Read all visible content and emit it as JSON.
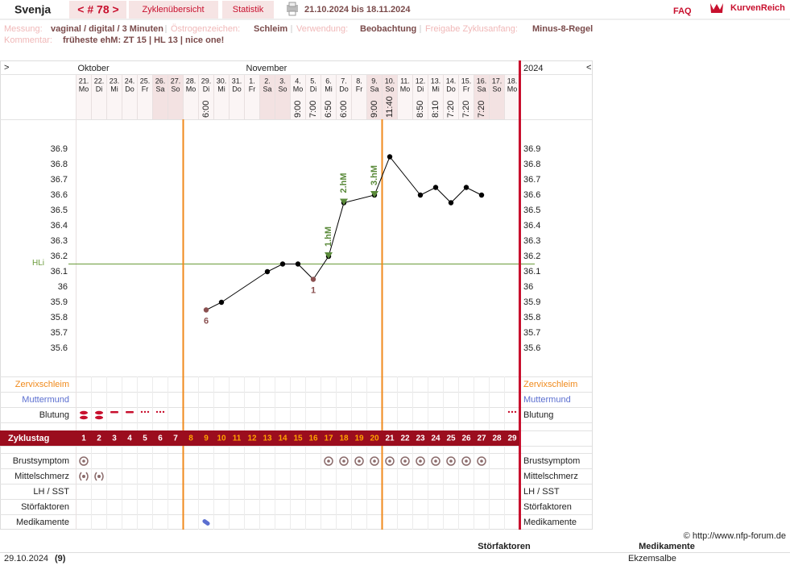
{
  "header": {
    "name": "Svenja",
    "cycle_nav": "< # 78 >",
    "tabs": [
      "Zyklenübersicht",
      "Statistik"
    ],
    "date_range": "21.10.2024 bis 18.11.2024",
    "faq": "FAQ",
    "logo": "KurvenReich"
  },
  "info": {
    "fields": [
      {
        "label": "Messung:",
        "value": "vaginal / digital / 3 Minuten"
      },
      {
        "label": "Östrogenzeichen:",
        "value": "Schleim"
      },
      {
        "label": "Verwendung:",
        "value": "Beobachtung"
      },
      {
        "label": "Freigabe Zyklusanfang:",
        "value": "Minus-8-Regel"
      }
    ],
    "comment_label": "Kommentar:",
    "comment": "früheste ehM: ZT 15 | HL 13 | nice one!"
  },
  "chart_data": {
    "type": "line",
    "nav_prev": ">",
    "nav_next": "<",
    "year": "2024",
    "month_labels": [
      "Oktober",
      null,
      null,
      null,
      null,
      null,
      null,
      null,
      null,
      null,
      null,
      "November",
      null,
      null,
      null,
      null,
      null,
      null,
      null,
      null,
      null,
      null,
      null,
      null,
      null,
      null,
      null,
      null,
      null
    ],
    "dates": [
      "21.",
      "22.",
      "23.",
      "24.",
      "25.",
      "26.",
      "27.",
      "28.",
      "29.",
      "30.",
      "31.",
      "1.",
      "2.",
      "3.",
      "4.",
      "5.",
      "6.",
      "7.",
      "8.",
      "9.",
      "10.",
      "11.",
      "12.",
      "13.",
      "14.",
      "15.",
      "16.",
      "17.",
      "18."
    ],
    "weekdays": [
      "Mo",
      "Di",
      "Mi",
      "Do",
      "Fr",
      "Sa",
      "So",
      "Mo",
      "Di",
      "Mi",
      "Do",
      "Fr",
      "Sa",
      "So",
      "Mo",
      "Di",
      "Mi",
      "Do",
      "Fr",
      "Sa",
      "So",
      "Mo",
      "Di",
      "Mi",
      "Do",
      "Fr",
      "Sa",
      "So",
      "Mo"
    ],
    "times": [
      null,
      null,
      null,
      null,
      null,
      null,
      null,
      null,
      "6:00",
      null,
      null,
      null,
      null,
      null,
      "9:00",
      "7:00",
      "6:50",
      "6:00",
      null,
      "9:00",
      "11:40",
      null,
      "8:50",
      "8:10",
      "7:20",
      "7:20",
      "7:20",
      null,
      null
    ],
    "cycle_days": [
      1,
      2,
      3,
      4,
      5,
      6,
      7,
      8,
      9,
      10,
      11,
      12,
      13,
      14,
      15,
      16,
      17,
      18,
      19,
      20,
      21,
      22,
      23,
      24,
      25,
      26,
      27,
      28,
      29
    ],
    "cycle_day_label": "Zyklustag",
    "x": [
      9,
      10,
      13,
      14,
      15,
      16,
      17,
      18,
      20,
      21,
      23,
      24,
      25,
      26,
      27
    ],
    "values": [
      35.85,
      35.9,
      36.1,
      36.15,
      36.15,
      36.05,
      36.2,
      36.55,
      36.6,
      36.85,
      36.6,
      36.65,
      36.55,
      36.65,
      36.6
    ],
    "point_labels": [
      "6",
      null,
      null,
      null,
      null,
      "1",
      null,
      null,
      null,
      null,
      null,
      null,
      null,
      null,
      null
    ],
    "xlim": [
      0.5,
      29.5
    ],
    "ylim": [
      35.4,
      37.1
    ],
    "yticks": [
      35.6,
      35.7,
      35.8,
      35.9,
      36,
      36.1,
      36.2,
      36.3,
      36.4,
      36.5,
      36.6,
      36.7,
      36.8,
      36.9
    ],
    "cover_line": {
      "label": "HLi",
      "value": 36.15,
      "color": "#6a9a3a"
    },
    "markers": {
      "x": [
        17,
        18,
        20
      ],
      "labels": [
        "1.hM",
        "2.hM",
        "3.hM"
      ],
      "color": "#5a8a3a"
    },
    "phase_lines": [
      7.5,
      20.5
    ],
    "color": "#000000"
  },
  "rows": {
    "top": [
      "Zervixschleim",
      "Muttermund",
      "Blutung"
    ],
    "bottom": [
      "Brustsymptom",
      "Mittelschmerz",
      "LH / SST",
      "Störfaktoren",
      "Medikamente"
    ]
  },
  "footer": {
    "copyright": "© http://www.nfp-forum.de",
    "columns": [
      "Störfaktoren",
      "Medikamente"
    ],
    "entries": [
      {
        "date": "29.10.2024",
        "day": "(9)",
        "medication": "Ekzemsalbe"
      }
    ]
  }
}
